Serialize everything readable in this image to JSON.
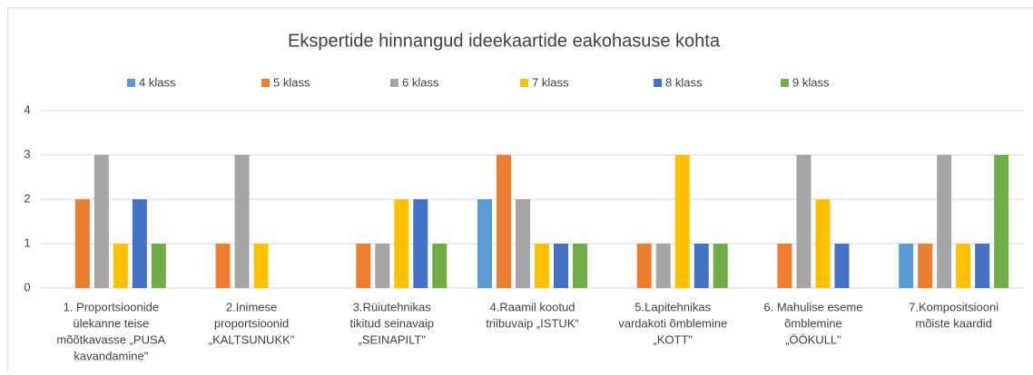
{
  "chart_data": {
    "type": "bar",
    "title": "Ekspertide hinnangud ideekaartide eakohasuse  kohta",
    "categories": [
      [
        "1. Proportsioonide",
        "ülekanne teise",
        "mõõtkavasse „PUSA",
        "kavandamine\""
      ],
      [
        "2.Inimese",
        "proportsioonid",
        "„KALTSUNUKK\""
      ],
      [
        "3.Rüiutehnikas",
        "tikitud seinavaip",
        "„SEINAPILT\""
      ],
      [
        "4.Raamil kootud",
        "triibuvaip „ISTUK“"
      ],
      [
        "5.Lapitehnikas",
        "vardakoti õmblemine",
        "„KOTT\""
      ],
      [
        "6. Mahulise eseme",
        "õmblemine",
        "„ÖÖKULL\""
      ],
      [
        "7.Kompositsiooni",
        "mõiste kaardid"
      ]
    ],
    "series": [
      {
        "name": "4 klass",
        "color": "#5b9bd5",
        "values": [
          0,
          0,
          0,
          2,
          0,
          0,
          1
        ]
      },
      {
        "name": "5 klass",
        "color": "#ed7d31",
        "values": [
          2,
          1,
          1,
          3,
          1,
          1,
          1
        ]
      },
      {
        "name": "6 klass",
        "color": "#a5a5a5",
        "values": [
          3,
          3,
          1,
          2,
          1,
          3,
          3
        ]
      },
      {
        "name": "7 klass",
        "color": "#ffc000",
        "values": [
          1,
          1,
          2,
          1,
          3,
          2,
          1
        ]
      },
      {
        "name": "8 klass",
        "color": "#4472c4",
        "values": [
          2,
          0,
          2,
          1,
          1,
          1,
          1
        ]
      },
      {
        "name": "9 klass",
        "color": "#70ad47",
        "values": [
          1,
          0,
          1,
          1,
          1,
          0,
          3
        ]
      }
    ],
    "ylim": [
      0,
      4
    ],
    "yticks": [
      0,
      1,
      2,
      3,
      4
    ],
    "grid": true,
    "legend": "top"
  }
}
